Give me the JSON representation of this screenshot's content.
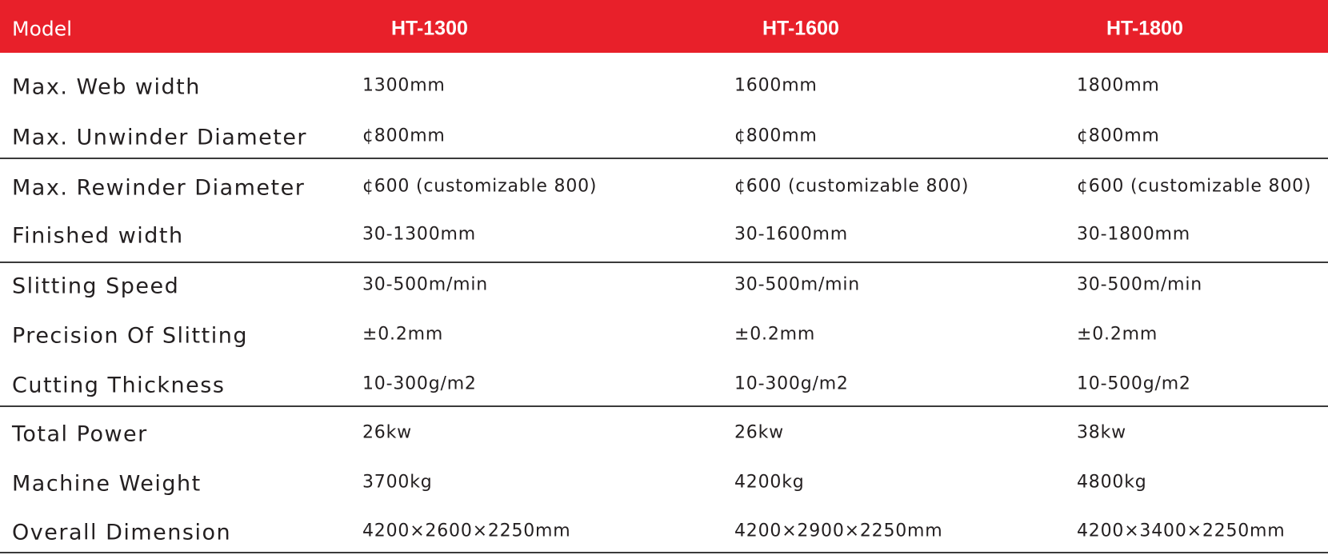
{
  "table": {
    "header": [
      "Model",
      "HT-1300",
      "HT-1600",
      "HT-1800"
    ],
    "rows": [
      [
        "Max.  Web width",
        "1300mm",
        "1600mm",
        "1800mm"
      ],
      [
        "Max. Unwinder  Diameter",
        "¢800mm",
        "¢800mm",
        "¢800mm"
      ],
      [
        "Max. Rewinder Diameter",
        "¢600  (customizable 800)",
        "¢600  (customizable 800)",
        "¢600  (customizable 800)"
      ],
      [
        "Finished width",
        "30-1300mm",
        "30-1600mm",
        "30-1800mm"
      ],
      [
        "Slitting Speed",
        "30-500m/min",
        "30-500m/min",
        "30-500m/min"
      ],
      [
        "Precision Of Slitting",
        "±0.2mm",
        "±0.2mm",
        "±0.2mm"
      ],
      [
        "Cutting Thickness",
        "10-300g/m2",
        "10-300g/m2",
        "10-500g/m2"
      ],
      [
        "Total Power",
        "26kw",
        "26kw",
        "38kw"
      ],
      [
        "Machine Weight",
        "3700kg",
        "4200kg",
        "4800kg"
      ],
      [
        "Overall Dimension",
        "4200×2600×2250mm",
        "4200×2900×2250mm",
        "4200×3400×2250mm"
      ]
    ]
  }
}
